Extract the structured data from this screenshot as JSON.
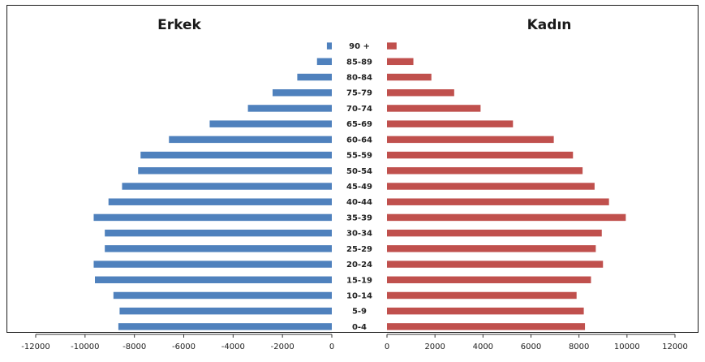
{
  "chart_data": {
    "type": "bar",
    "orientation": "horizontal",
    "categories": [
      "0-4",
      "5-9",
      "10-14",
      "15-19",
      "20-24",
      "25-29",
      "30-34",
      "35-39",
      "40-44",
      "45-49",
      "50-54",
      "55-59",
      "60-64",
      "65-69",
      "70-74",
      "75-79",
      "80-84",
      "85-89",
      "90 +"
    ],
    "series": [
      {
        "name": "Erkek",
        "color": "#4F81BD",
        "values": [
          -8650,
          -8600,
          -8850,
          -9600,
          -9650,
          -9200,
          -9200,
          -9650,
          -9050,
          -8500,
          -7850,
          -7750,
          -6600,
          -4950,
          -3400,
          -2400,
          -1400,
          -600,
          -200
        ]
      },
      {
        "name": "Kadın",
        "color": "#C0504D",
        "values": [
          8250,
          8200,
          7900,
          8500,
          9000,
          8700,
          8950,
          9950,
          9250,
          8650,
          8150,
          7750,
          6950,
          5250,
          3900,
          2800,
          1850,
          1100,
          400
        ]
      }
    ],
    "left_axis": {
      "xlim": [
        -12000,
        0
      ],
      "ticks": [
        -12000,
        -10000,
        -8000,
        -6000,
        -4000,
        -2000,
        0
      ],
      "tick_labels": [
        "-12000",
        "-10000",
        "-8000",
        "-6000",
        "-4000",
        "-2000",
        "0"
      ]
    },
    "right_axis": {
      "xlim": [
        0,
        12000
      ],
      "ticks": [
        0,
        2000,
        4000,
        6000,
        8000,
        10000,
        12000
      ],
      "tick_labels": [
        "0",
        "2000",
        "4000",
        "6000",
        "8000",
        "10000",
        "12000"
      ]
    },
    "panel_titles": {
      "left": "Erkek",
      "right": "Kadın"
    },
    "grid": false,
    "legend": "none"
  }
}
